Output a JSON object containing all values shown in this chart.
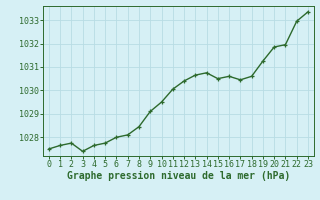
{
  "x": [
    0,
    1,
    2,
    3,
    4,
    5,
    6,
    7,
    8,
    9,
    10,
    11,
    12,
    13,
    14,
    15,
    16,
    17,
    18,
    19,
    20,
    21,
    22,
    23
  ],
  "y": [
    1027.5,
    1027.65,
    1027.75,
    1027.4,
    1027.65,
    1027.75,
    1028.0,
    1028.1,
    1028.45,
    1029.1,
    1029.5,
    1030.05,
    1030.4,
    1030.65,
    1030.75,
    1030.5,
    1030.6,
    1030.45,
    1030.6,
    1031.25,
    1031.85,
    1031.95,
    1032.95,
    1033.35
  ],
  "line_color": "#2d6a2d",
  "marker_color": "#2d6a2d",
  "bg_color": "#d6f0f5",
  "grid_color": "#b8dce4",
  "axis_color": "#2d6a2d",
  "label_color": "#2d6a2d",
  "xlabel": "Graphe pression niveau de la mer (hPa)",
  "ylim": [
    1027.2,
    1033.6
  ],
  "yticks": [
    1028,
    1029,
    1030,
    1031,
    1032,
    1033
  ],
  "xticks": [
    0,
    1,
    2,
    3,
    4,
    5,
    6,
    7,
    8,
    9,
    10,
    11,
    12,
    13,
    14,
    15,
    16,
    17,
    18,
    19,
    20,
    21,
    22,
    23
  ],
  "xlabel_fontsize": 7.0,
  "tick_fontsize": 6.0,
  "marker_size": 3.0,
  "line_width": 1.0
}
